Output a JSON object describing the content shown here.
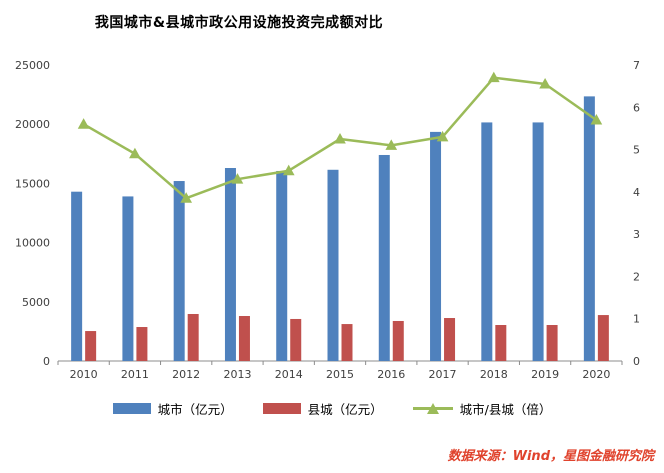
{
  "page": {
    "title": "我国城市&县城市政公用设施投资完成额对比",
    "source_note": "数据来源：Wind，星图金融研究院"
  },
  "colors": {
    "city_bar": "#4F81BD",
    "county_bar": "#C0504D",
    "ratio_line": "#9BBB59",
    "axis_line": "#8c8c8c",
    "tick_text": "#3f3f3f",
    "source_text": "#E0432D"
  },
  "chart_data": {
    "type": "bar",
    "subtype": "grouped bars with secondary-axis line",
    "title": "我国城市&县城市政公用设施投资完成额对比",
    "categories": [
      "2010",
      "2011",
      "2012",
      "2013",
      "2014",
      "2015",
      "2016",
      "2017",
      "2018",
      "2019",
      "2020"
    ],
    "series": [
      {
        "name": "城市（亿元）",
        "type": "bar",
        "axis": "left",
        "color": "#4F81BD",
        "values": [
          14300,
          13900,
          15200,
          16300,
          16050,
          16150,
          17400,
          19350,
          20150,
          20150,
          22350
        ]
      },
      {
        "name": "县城（亿元）",
        "type": "bar",
        "axis": "left",
        "color": "#C0504D",
        "values": [
          2530,
          2870,
          3970,
          3800,
          3550,
          3120,
          3380,
          3630,
          3040,
          3040,
          3880
        ]
      },
      {
        "name": "城市/县城（倍）",
        "type": "line",
        "axis": "right",
        "color": "#9BBB59",
        "marker": "triangle",
        "values": [
          5.6,
          4.9,
          3.85,
          4.3,
          4.5,
          5.25,
          5.1,
          5.3,
          6.7,
          6.55,
          5.7
        ]
      }
    ],
    "left_axis": {
      "min": 0,
      "max": 25000,
      "step": 5000,
      "tick_labels": [
        "0",
        "5000",
        "10000",
        "15000",
        "20000",
        "25000"
      ]
    },
    "right_axis": {
      "min": 0,
      "max": 7,
      "step": 1,
      "tick_labels": [
        "0",
        "1",
        "2",
        "3",
        "4",
        "5",
        "6",
        "7"
      ]
    },
    "grid": false,
    "legend_position": "bottom"
  }
}
